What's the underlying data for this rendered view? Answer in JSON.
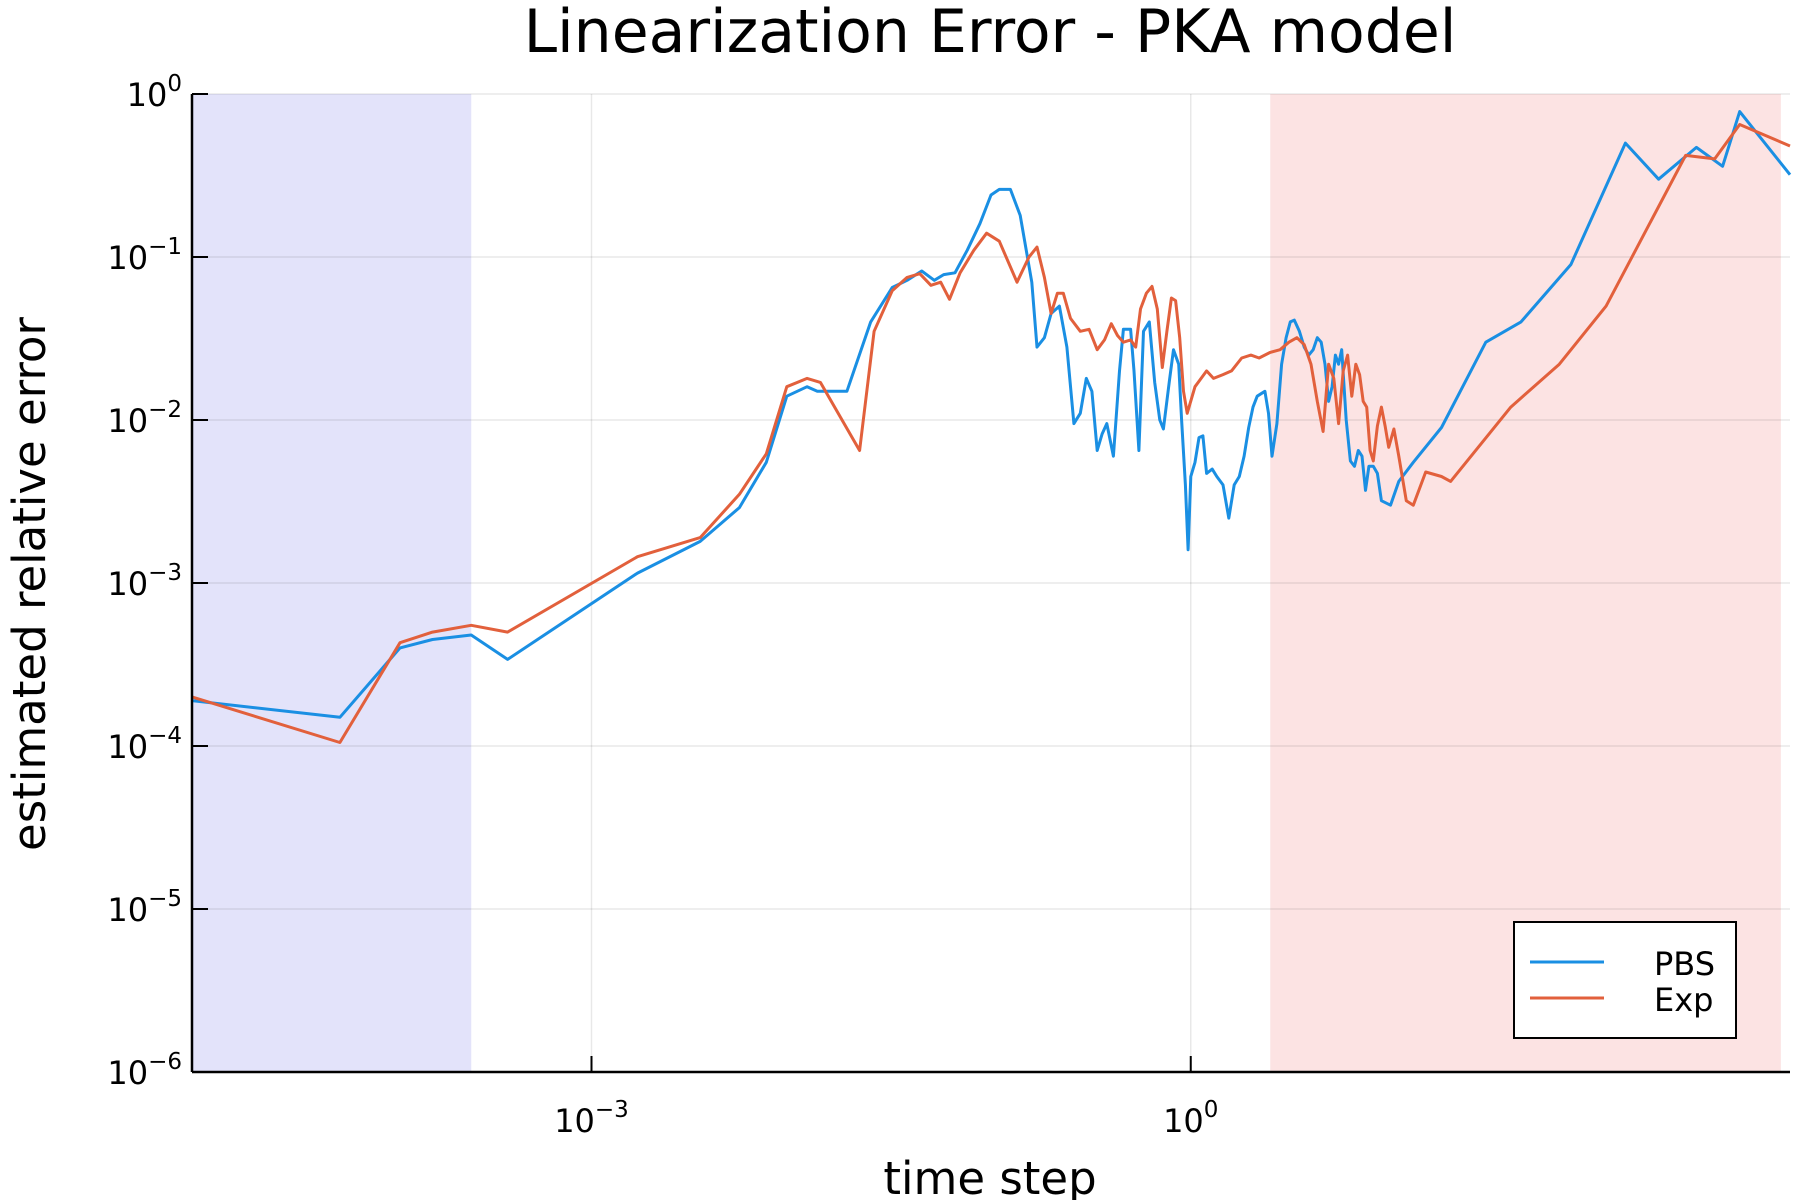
{
  "chart_data": {
    "type": "line",
    "title": "Linearization Error - PKA model",
    "xlabel": "time step",
    "ylabel": "estimated relative error",
    "x_scale": "log10",
    "y_scale": "log10",
    "xlim": [
      1e-05,
      1000
    ],
    "ylim": [
      1e-06,
      1
    ],
    "x_ticks": [
      {
        "value": 0.001,
        "base": "10",
        "exp": "−3"
      },
      {
        "value": 1,
        "base": "10",
        "exp": "0"
      }
    ],
    "y_ticks": [
      {
        "value": 1,
        "base": "10",
        "exp": "0"
      },
      {
        "value": 0.1,
        "base": "10",
        "exp": "−1"
      },
      {
        "value": 0.01,
        "base": "10",
        "exp": "−2"
      },
      {
        "value": 0.001,
        "base": "10",
        "exp": "−3"
      },
      {
        "value": 0.0001,
        "base": "10",
        "exp": "−4"
      },
      {
        "value": 1e-05,
        "base": "10",
        "exp": "−5"
      },
      {
        "value": 1e-06,
        "base": "10",
        "exp": "−6"
      }
    ],
    "grid": true,
    "legend_position": "bottom-right",
    "shaded_regions": [
      {
        "x": [
          1e-05,
          0.00025
        ],
        "color": "#e3e3fa"
      },
      {
        "x": [
          2.5,
          900
        ],
        "color": "#fce3e3"
      }
    ],
    "series": [
      {
        "name": "PBS",
        "color": "#1a8fe3",
        "points": [
          [
            1e-05,
            0.00019
          ],
          [
            5.5e-05,
            0.00015
          ],
          [
            0.00011,
            0.0004
          ],
          [
            0.00016,
            0.00045
          ],
          [
            0.00025,
            0.00048
          ],
          [
            0.00038,
            0.00034
          ],
          [
            0.0017,
            0.00115
          ],
          [
            0.0035,
            0.0018
          ],
          [
            0.0055,
            0.0029
          ],
          [
            0.0075,
            0.0055
          ],
          [
            0.0095,
            0.014
          ],
          [
            0.012,
            0.016
          ],
          [
            0.0135,
            0.015
          ],
          [
            0.016,
            0.015
          ],
          [
            0.019,
            0.015
          ],
          [
            0.025,
            0.04
          ],
          [
            0.032,
            0.065
          ],
          [
            0.038,
            0.072
          ],
          [
            0.045,
            0.082
          ],
          [
            0.052,
            0.072
          ],
          [
            0.058,
            0.078
          ],
          [
            0.066,
            0.08
          ],
          [
            0.076,
            0.11
          ],
          [
            0.088,
            0.16
          ],
          [
            0.1,
            0.24
          ],
          [
            0.11,
            0.26
          ],
          [
            0.125,
            0.26
          ],
          [
            0.14,
            0.18
          ],
          [
            0.16,
            0.07
          ],
          [
            0.17,
            0.028
          ],
          [
            0.185,
            0.032
          ],
          [
            0.2,
            0.045
          ],
          [
            0.22,
            0.05
          ],
          [
            0.24,
            0.028
          ],
          [
            0.26,
            0.0095
          ],
          [
            0.28,
            0.011
          ],
          [
            0.3,
            0.018
          ],
          [
            0.32,
            0.015
          ],
          [
            0.34,
            0.0065
          ],
          [
            0.36,
            0.0082
          ],
          [
            0.38,
            0.0095
          ],
          [
            0.41,
            0.006
          ],
          [
            0.44,
            0.02
          ],
          [
            0.46,
            0.036
          ],
          [
            0.5,
            0.036
          ],
          [
            0.52,
            0.02
          ],
          [
            0.55,
            0.0065
          ],
          [
            0.58,
            0.035
          ],
          [
            0.62,
            0.04
          ],
          [
            0.66,
            0.017
          ],
          [
            0.7,
            0.01
          ],
          [
            0.73,
            0.0088
          ],
          [
            0.78,
            0.017
          ],
          [
            0.82,
            0.027
          ],
          [
            0.87,
            0.022
          ],
          [
            0.9,
            0.01
          ],
          [
            0.94,
            0.004
          ],
          [
            0.97,
            0.0016
          ],
          [
            1.0,
            0.0045
          ],
          [
            1.05,
            0.0055
          ],
          [
            1.1,
            0.0078
          ],
          [
            1.15,
            0.008
          ],
          [
            1.2,
            0.0047
          ],
          [
            1.28,
            0.005
          ],
          [
            1.35,
            0.0045
          ],
          [
            1.45,
            0.004
          ],
          [
            1.55,
            0.0025
          ],
          [
            1.65,
            0.004
          ],
          [
            1.75,
            0.0045
          ],
          [
            1.85,
            0.006
          ],
          [
            1.95,
            0.009
          ],
          [
            2.05,
            0.012
          ],
          [
            2.15,
            0.014
          ],
          [
            2.25,
            0.0145
          ],
          [
            2.35,
            0.015
          ],
          [
            2.45,
            0.011
          ],
          [
            2.55,
            0.006
          ],
          [
            2.7,
            0.0095
          ],
          [
            2.85,
            0.022
          ],
          [
            3.0,
            0.032
          ],
          [
            3.15,
            0.04
          ],
          [
            3.3,
            0.041
          ],
          [
            3.5,
            0.035
          ],
          [
            3.7,
            0.028
          ],
          [
            3.9,
            0.025
          ],
          [
            4.1,
            0.027
          ],
          [
            4.3,
            0.032
          ],
          [
            4.5,
            0.03
          ],
          [
            4.7,
            0.022
          ],
          [
            4.9,
            0.013
          ],
          [
            5.1,
            0.016
          ],
          [
            5.3,
            0.025
          ],
          [
            5.5,
            0.022
          ],
          [
            5.7,
            0.027
          ],
          [
            6.0,
            0.01
          ],
          [
            6.3,
            0.0056
          ],
          [
            6.6,
            0.0052
          ],
          [
            6.9,
            0.0065
          ],
          [
            7.2,
            0.006
          ],
          [
            7.5,
            0.0037
          ],
          [
            7.8,
            0.0052
          ],
          [
            8.2,
            0.0052
          ],
          [
            8.6,
            0.0047
          ],
          [
            9.0,
            0.0032
          ],
          [
            10.0,
            0.003
          ],
          [
            11.0,
            0.0042
          ],
          [
            13.0,
            0.0055
          ],
          [
            18.0,
            0.009
          ],
          [
            30.0,
            0.03
          ],
          [
            45.0,
            0.04
          ],
          [
            80.0,
            0.09
          ],
          [
            150.0,
            0.5
          ],
          [
            220.0,
            0.3
          ],
          [
            340.0,
            0.47
          ],
          [
            460.0,
            0.36
          ],
          [
            560.0,
            0.78
          ],
          [
            1000.0,
            0.32
          ]
        ]
      },
      {
        "name": "Exp",
        "color": "#e2603c",
        "points": [
          [
            1e-05,
            0.0002
          ],
          [
            5.5e-05,
            0.000105
          ],
          [
            0.00011,
            0.00043
          ],
          [
            0.00016,
            0.0005
          ],
          [
            0.00025,
            0.00055
          ],
          [
            0.00038,
            0.0005
          ],
          [
            0.0017,
            0.00145
          ],
          [
            0.0035,
            0.0019
          ],
          [
            0.0055,
            0.0035
          ],
          [
            0.0075,
            0.0062
          ],
          [
            0.0095,
            0.016
          ],
          [
            0.012,
            0.018
          ],
          [
            0.014,
            0.017
          ],
          [
            0.022,
            0.0065
          ],
          [
            0.026,
            0.035
          ],
          [
            0.032,
            0.062
          ],
          [
            0.038,
            0.075
          ],
          [
            0.044,
            0.079
          ],
          [
            0.05,
            0.067
          ],
          [
            0.056,
            0.07
          ],
          [
            0.062,
            0.055
          ],
          [
            0.07,
            0.08
          ],
          [
            0.082,
            0.11
          ],
          [
            0.095,
            0.14
          ],
          [
            0.11,
            0.125
          ],
          [
            0.135,
            0.07
          ],
          [
            0.155,
            0.1
          ],
          [
            0.17,
            0.115
          ],
          [
            0.185,
            0.075
          ],
          [
            0.2,
            0.045
          ],
          [
            0.215,
            0.06
          ],
          [
            0.23,
            0.06
          ],
          [
            0.25,
            0.042
          ],
          [
            0.28,
            0.035
          ],
          [
            0.31,
            0.036
          ],
          [
            0.34,
            0.027
          ],
          [
            0.37,
            0.031
          ],
          [
            0.4,
            0.039
          ],
          [
            0.43,
            0.033
          ],
          [
            0.46,
            0.03
          ],
          [
            0.5,
            0.031
          ],
          [
            0.53,
            0.028
          ],
          [
            0.56,
            0.048
          ],
          [
            0.6,
            0.06
          ],
          [
            0.64,
            0.066
          ],
          [
            0.68,
            0.048
          ],
          [
            0.72,
            0.021
          ],
          [
            0.76,
            0.035
          ],
          [
            0.8,
            0.056
          ],
          [
            0.84,
            0.054
          ],
          [
            0.88,
            0.032
          ],
          [
            0.92,
            0.015
          ],
          [
            0.96,
            0.011
          ],
          [
            1.05,
            0.016
          ],
          [
            1.2,
            0.02
          ],
          [
            1.3,
            0.018
          ],
          [
            1.45,
            0.019
          ],
          [
            1.6,
            0.02
          ],
          [
            1.8,
            0.024
          ],
          [
            2.0,
            0.025
          ],
          [
            2.2,
            0.024
          ],
          [
            2.5,
            0.026
          ],
          [
            2.8,
            0.027
          ],
          [
            3.1,
            0.03
          ],
          [
            3.4,
            0.032
          ],
          [
            3.7,
            0.029
          ],
          [
            4.0,
            0.022
          ],
          [
            4.3,
            0.013
          ],
          [
            4.6,
            0.0085
          ],
          [
            4.9,
            0.022
          ],
          [
            5.2,
            0.018
          ],
          [
            5.5,
            0.0095
          ],
          [
            5.8,
            0.02
          ],
          [
            6.1,
            0.025
          ],
          [
            6.4,
            0.014
          ],
          [
            6.7,
            0.022
          ],
          [
            7.0,
            0.019
          ],
          [
            7.3,
            0.013
          ],
          [
            7.6,
            0.012
          ],
          [
            7.9,
            0.0065
          ],
          [
            8.2,
            0.0056
          ],
          [
            8.6,
            0.0092
          ],
          [
            9.0,
            0.012
          ],
          [
            9.4,
            0.0092
          ],
          [
            9.8,
            0.0068
          ],
          [
            10.4,
            0.0088
          ],
          [
            11.0,
            0.006
          ],
          [
            12.0,
            0.0032
          ],
          [
            13.0,
            0.003
          ],
          [
            15.0,
            0.0048
          ],
          [
            18.0,
            0.0045
          ],
          [
            20.0,
            0.0042
          ],
          [
            40.0,
            0.012
          ],
          [
            70.0,
            0.022
          ],
          [
            120.0,
            0.05
          ],
          [
            300.0,
            0.42
          ],
          [
            420.0,
            0.4
          ],
          [
            560.0,
            0.65
          ],
          [
            1000.0,
            0.48
          ]
        ]
      }
    ]
  }
}
